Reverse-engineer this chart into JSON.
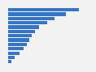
{
  "values": [
    32.0,
    26.0,
    21.0,
    17.5,
    14.0,
    12.0,
    10.5,
    9.5,
    8.5,
    7.0,
    5.0,
    3.0,
    1.5
  ],
  "bar_color": "#3575c3",
  "background_color": "#f2f2f2",
  "xlim_max": 36.0,
  "bar_height": 0.78,
  "grid_color": "#ffffff",
  "grid_linewidth": 0.6
}
